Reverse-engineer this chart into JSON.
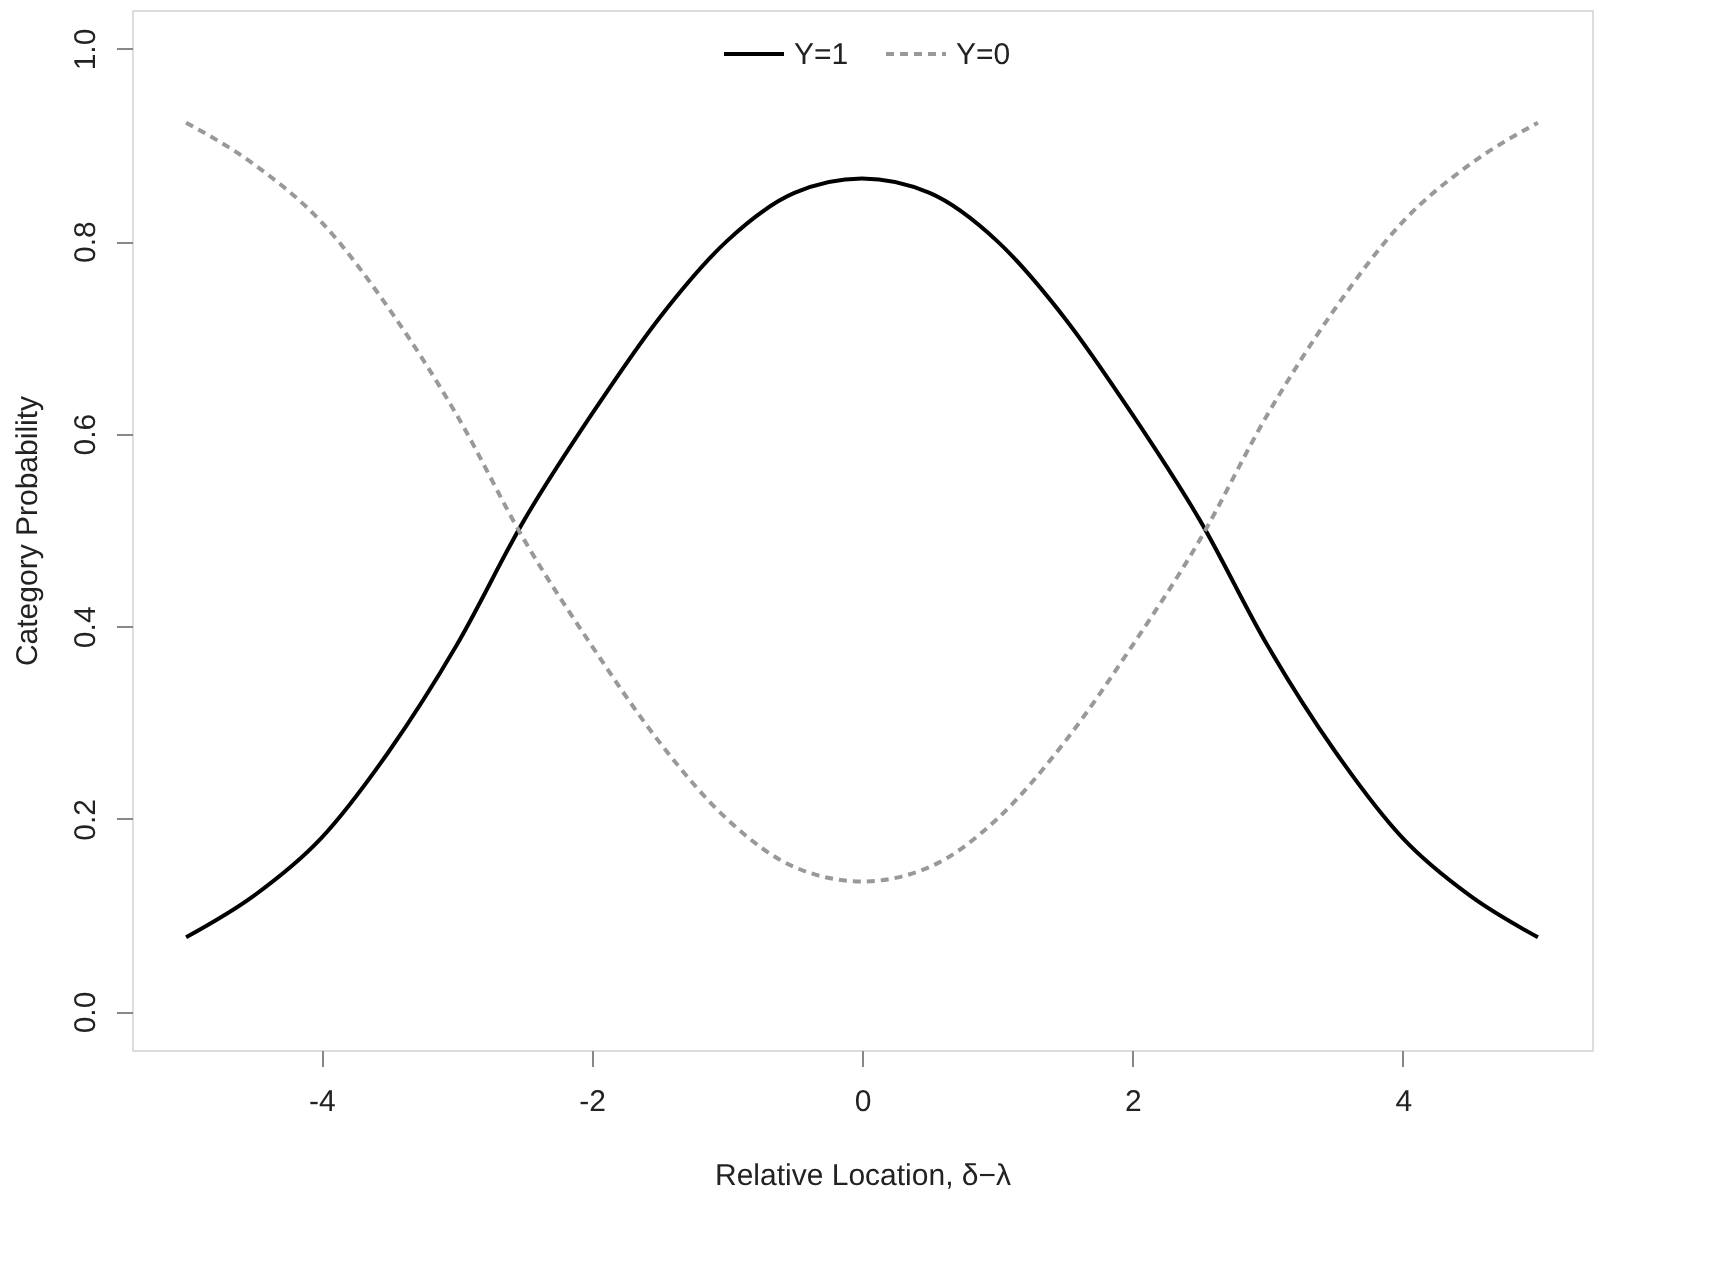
{
  "chart_data": {
    "type": "line",
    "xlabel": "Relative Location,  δ−λ",
    "ylabel": "Category Probability",
    "x": [
      -5,
      -4.5,
      -4,
      -3.5,
      -3,
      -2.5,
      -2,
      -1.5,
      -1,
      -0.5,
      0,
      0.5,
      1,
      1.5,
      2,
      2.5,
      3,
      3.5,
      4,
      4.5,
      5
    ],
    "series": [
      {
        "name": "Y=1",
        "color": "#000000",
        "line_style": "solid",
        "values": [
          0.077,
          0.12,
          0.18,
          0.27,
          0.38,
          0.51,
          0.62,
          0.72,
          0.8,
          0.85,
          0.865,
          0.85,
          0.8,
          0.72,
          0.62,
          0.51,
          0.38,
          0.27,
          0.18,
          0.12,
          0.077
        ]
      },
      {
        "name": "Y=0",
        "color": "#999999",
        "line_style": "dashed",
        "values": [
          0.923,
          0.88,
          0.82,
          0.73,
          0.62,
          0.49,
          0.38,
          0.28,
          0.2,
          0.15,
          0.135,
          0.15,
          0.2,
          0.28,
          0.38,
          0.49,
          0.62,
          0.73,
          0.82,
          0.88,
          0.923
        ]
      }
    ],
    "xlim": [
      -5.4,
      5.4
    ],
    "ylim": [
      -0.04,
      1.04
    ],
    "xticks": [
      -4,
      -2,
      0,
      2,
      4
    ],
    "yticks": [
      {
        "value": 0,
        "label": "0.0"
      },
      0.2,
      0.4,
      0.6,
      0.8,
      {
        "value": 1,
        "label": "1.0"
      }
    ],
    "grid": false,
    "legend": "top",
    "marker": "none"
  }
}
